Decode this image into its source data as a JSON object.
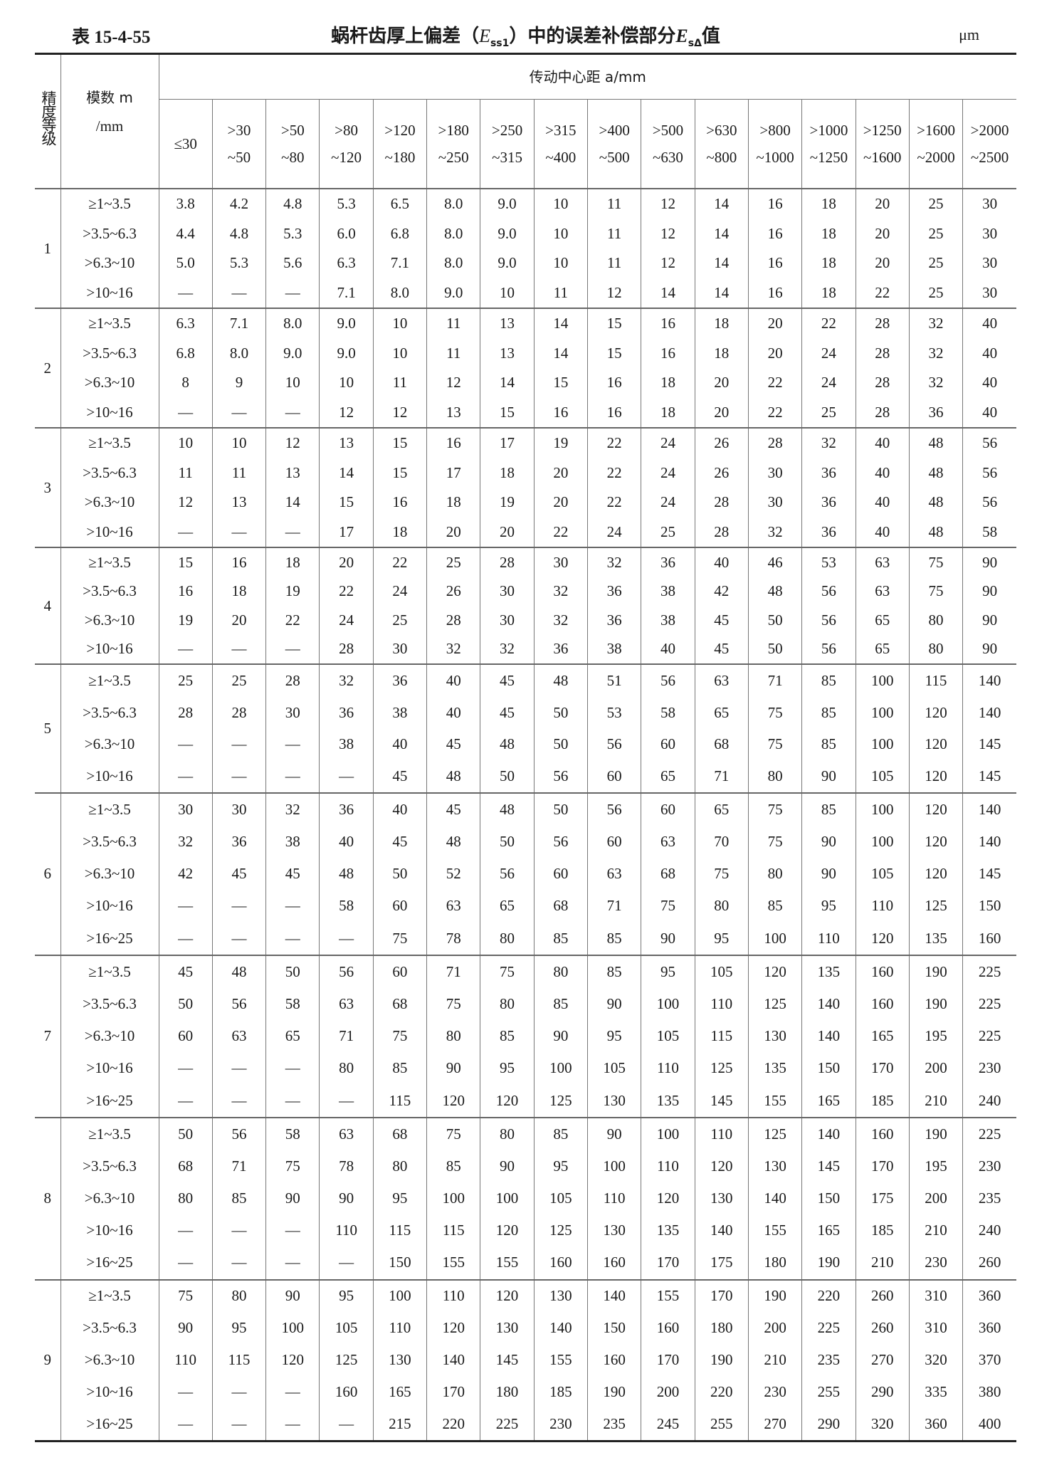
{
  "title": {
    "number": "表 15-4-55",
    "text_before": "蜗杆齿厚上偏差（",
    "e_symbol": "E",
    "e_sub": "ss1",
    "text_middle": "）中的误差补偿部分",
    "e2_symbol": "E",
    "e2_sub": "sΔ",
    "text_after": "值",
    "unit": "μm"
  },
  "header": {
    "grade": "精度等级",
    "module_line1": "模数 m",
    "module_line2": "/mm",
    "center_distance": "传动中心距 a/mm",
    "columns": [
      [
        "≤30",
        ""
      ],
      [
        ">30",
        "~50"
      ],
      [
        ">50",
        "~80"
      ],
      [
        ">80",
        "~120"
      ],
      [
        ">120",
        "~180"
      ],
      [
        ">180",
        "~250"
      ],
      [
        ">250",
        "~315"
      ],
      [
        ">315",
        "~400"
      ],
      [
        ">400",
        "~500"
      ],
      [
        ">500",
        "~630"
      ],
      [
        ">630",
        "~800"
      ],
      [
        ">800",
        "~1000"
      ],
      [
        ">1000",
        "~1250"
      ],
      [
        ">1250",
        "~1600"
      ],
      [
        ">1600",
        "~2000"
      ],
      [
        ">2000",
        "~2500"
      ]
    ]
  },
  "groups": [
    {
      "grade": "1",
      "rows": [
        {
          "m": "≥1~3.5",
          "v": [
            "3.8",
            "4.2",
            "4.8",
            "5.3",
            "6.5",
            "8.0",
            "9.0",
            "10",
            "11",
            "12",
            "14",
            "16",
            "18",
            "20",
            "25",
            "30"
          ]
        },
        {
          "m": ">3.5~6.3",
          "v": [
            "4.4",
            "4.8",
            "5.3",
            "6.0",
            "6.8",
            "8.0",
            "9.0",
            "10",
            "11",
            "12",
            "14",
            "16",
            "18",
            "20",
            "25",
            "30"
          ]
        },
        {
          "m": ">6.3~10",
          "v": [
            "5.0",
            "5.3",
            "5.6",
            "6.3",
            "7.1",
            "8.0",
            "9.0",
            "10",
            "11",
            "12",
            "14",
            "16",
            "18",
            "20",
            "25",
            "30"
          ]
        },
        {
          "m": ">10~16",
          "v": [
            "—",
            "—",
            "—",
            "7.1",
            "8.0",
            "9.0",
            "10",
            "11",
            "12",
            "14",
            "14",
            "16",
            "18",
            "22",
            "25",
            "30"
          ]
        }
      ]
    },
    {
      "grade": "2",
      "rows": [
        {
          "m": "≥1~3.5",
          "v": [
            "6.3",
            "7.1",
            "8.0",
            "9.0",
            "10",
            "11",
            "13",
            "14",
            "15",
            "16",
            "18",
            "20",
            "22",
            "28",
            "32",
            "40"
          ]
        },
        {
          "m": ">3.5~6.3",
          "v": [
            "6.8",
            "8.0",
            "9.0",
            "9.0",
            "10",
            "11",
            "13",
            "14",
            "15",
            "16",
            "18",
            "20",
            "24",
            "28",
            "32",
            "40"
          ]
        },
        {
          "m": ">6.3~10",
          "v": [
            "8",
            "9",
            "10",
            "10",
            "11",
            "12",
            "14",
            "15",
            "16",
            "18",
            "20",
            "22",
            "24",
            "28",
            "32",
            "40"
          ]
        },
        {
          "m": ">10~16",
          "v": [
            "—",
            "—",
            "—",
            "12",
            "12",
            "13",
            "15",
            "16",
            "16",
            "18",
            "20",
            "22",
            "25",
            "28",
            "36",
            "40"
          ]
        }
      ]
    },
    {
      "grade": "3",
      "rows": [
        {
          "m": "≥1~3.5",
          "v": [
            "10",
            "10",
            "12",
            "13",
            "15",
            "16",
            "17",
            "19",
            "22",
            "24",
            "26",
            "28",
            "32",
            "40",
            "48",
            "56"
          ]
        },
        {
          "m": ">3.5~6.3",
          "v": [
            "11",
            "11",
            "13",
            "14",
            "15",
            "17",
            "18",
            "20",
            "22",
            "24",
            "26",
            "30",
            "36",
            "40",
            "48",
            "56"
          ]
        },
        {
          "m": ">6.3~10",
          "v": [
            "12",
            "13",
            "14",
            "15",
            "16",
            "18",
            "19",
            "20",
            "22",
            "24",
            "28",
            "30",
            "36",
            "40",
            "48",
            "56"
          ]
        },
        {
          "m": ">10~16",
          "v": [
            "—",
            "—",
            "—",
            "17",
            "18",
            "20",
            "20",
            "22",
            "24",
            "25",
            "28",
            "32",
            "36",
            "40",
            "48",
            "58"
          ]
        }
      ]
    },
    {
      "grade": "4",
      "rows": [
        {
          "m": "≥1~3.5",
          "v": [
            "15",
            "16",
            "18",
            "20",
            "22",
            "25",
            "28",
            "30",
            "32",
            "36",
            "40",
            "46",
            "53",
            "63",
            "75",
            "90"
          ]
        },
        {
          "m": ">3.5~6.3",
          "v": [
            "16",
            "18",
            "19",
            "22",
            "24",
            "26",
            "30",
            "32",
            "36",
            "38",
            "42",
            "48",
            "56",
            "63",
            "75",
            "90"
          ]
        },
        {
          "m": ">6.3~10",
          "v": [
            "19",
            "20",
            "22",
            "24",
            "25",
            "28",
            "30",
            "32",
            "36",
            "38",
            "45",
            "50",
            "56",
            "65",
            "80",
            "90"
          ]
        },
        {
          "m": ">10~16",
          "v": [
            "—",
            "—",
            "—",
            "28",
            "30",
            "32",
            "32",
            "36",
            "38",
            "40",
            "45",
            "50",
            "56",
            "65",
            "80",
            "90"
          ]
        }
      ]
    },
    {
      "grade": "5",
      "rows": [
        {
          "m": "≥1~3.5",
          "v": [
            "25",
            "25",
            "28",
            "32",
            "36",
            "40",
            "45",
            "48",
            "51",
            "56",
            "63",
            "71",
            "85",
            "100",
            "115",
            "140"
          ]
        },
        {
          "m": ">3.5~6.3",
          "v": [
            "28",
            "28",
            "30",
            "36",
            "38",
            "40",
            "45",
            "50",
            "53",
            "58",
            "65",
            "75",
            "85",
            "100",
            "120",
            "140"
          ]
        },
        {
          "m": ">6.3~10",
          "v": [
            "—",
            "—",
            "—",
            "38",
            "40",
            "45",
            "48",
            "50",
            "56",
            "60",
            "68",
            "75",
            "85",
            "100",
            "120",
            "145"
          ]
        },
        {
          "m": ">10~16",
          "v": [
            "—",
            "—",
            "—",
            "—",
            "45",
            "48",
            "50",
            "56",
            "60",
            "65",
            "71",
            "80",
            "90",
            "105",
            "120",
            "145"
          ]
        }
      ]
    },
    {
      "grade": "6",
      "rows": [
        {
          "m": "≥1~3.5",
          "v": [
            "30",
            "30",
            "32",
            "36",
            "40",
            "45",
            "48",
            "50",
            "56",
            "60",
            "65",
            "75",
            "85",
            "100",
            "120",
            "140"
          ]
        },
        {
          "m": ">3.5~6.3",
          "v": [
            "32",
            "36",
            "38",
            "40",
            "45",
            "48",
            "50",
            "56",
            "60",
            "63",
            "70",
            "75",
            "90",
            "100",
            "120",
            "140"
          ]
        },
        {
          "m": ">6.3~10",
          "v": [
            "42",
            "45",
            "45",
            "48",
            "50",
            "52",
            "56",
            "60",
            "63",
            "68",
            "75",
            "80",
            "90",
            "105",
            "120",
            "145"
          ]
        },
        {
          "m": ">10~16",
          "v": [
            "—",
            "—",
            "—",
            "58",
            "60",
            "63",
            "65",
            "68",
            "71",
            "75",
            "80",
            "85",
            "95",
            "110",
            "125",
            "150"
          ]
        },
        {
          "m": ">16~25",
          "v": [
            "—",
            "—",
            "—",
            "—",
            "75",
            "78",
            "80",
            "85",
            "85",
            "90",
            "95",
            "100",
            "110",
            "120",
            "135",
            "160"
          ]
        }
      ]
    },
    {
      "grade": "7",
      "rows": [
        {
          "m": "≥1~3.5",
          "v": [
            "45",
            "48",
            "50",
            "56",
            "60",
            "71",
            "75",
            "80",
            "85",
            "95",
            "105",
            "120",
            "135",
            "160",
            "190",
            "225"
          ]
        },
        {
          "m": ">3.5~6.3",
          "v": [
            "50",
            "56",
            "58",
            "63",
            "68",
            "75",
            "80",
            "85",
            "90",
            "100",
            "110",
            "125",
            "140",
            "160",
            "190",
            "225"
          ]
        },
        {
          "m": ">6.3~10",
          "v": [
            "60",
            "63",
            "65",
            "71",
            "75",
            "80",
            "85",
            "90",
            "95",
            "105",
            "115",
            "130",
            "140",
            "165",
            "195",
            "225"
          ]
        },
        {
          "m": ">10~16",
          "v": [
            "—",
            "—",
            "—",
            "80",
            "85",
            "90",
            "95",
            "100",
            "105",
            "110",
            "125",
            "135",
            "150",
            "170",
            "200",
            "230"
          ]
        },
        {
          "m": ">16~25",
          "v": [
            "—",
            "—",
            "—",
            "—",
            "115",
            "120",
            "120",
            "125",
            "130",
            "135",
            "145",
            "155",
            "165",
            "185",
            "210",
            "240"
          ]
        }
      ]
    },
    {
      "grade": "8",
      "rows": [
        {
          "m": "≥1~3.5",
          "v": [
            "50",
            "56",
            "58",
            "63",
            "68",
            "75",
            "80",
            "85",
            "90",
            "100",
            "110",
            "125",
            "140",
            "160",
            "190",
            "225"
          ]
        },
        {
          "m": ">3.5~6.3",
          "v": [
            "68",
            "71",
            "75",
            "78",
            "80",
            "85",
            "90",
            "95",
            "100",
            "110",
            "120",
            "130",
            "145",
            "170",
            "195",
            "230"
          ]
        },
        {
          "m": ">6.3~10",
          "v": [
            "80",
            "85",
            "90",
            "90",
            "95",
            "100",
            "100",
            "105",
            "110",
            "120",
            "130",
            "140",
            "150",
            "175",
            "200",
            "235"
          ]
        },
        {
          "m": ">10~16",
          "v": [
            "—",
            "—",
            "—",
            "110",
            "115",
            "115",
            "120",
            "125",
            "130",
            "135",
            "140",
            "155",
            "165",
            "185",
            "210",
            "240"
          ]
        },
        {
          "m": ">16~25",
          "v": [
            "—",
            "—",
            "—",
            "—",
            "150",
            "155",
            "155",
            "160",
            "160",
            "170",
            "175",
            "180",
            "190",
            "210",
            "230",
            "260"
          ]
        }
      ]
    },
    {
      "grade": "9",
      "rows": [
        {
          "m": "≥1~3.5",
          "v": [
            "75",
            "80",
            "90",
            "95",
            "100",
            "110",
            "120",
            "130",
            "140",
            "155",
            "170",
            "190",
            "220",
            "260",
            "310",
            "360"
          ]
        },
        {
          "m": ">3.5~6.3",
          "v": [
            "90",
            "95",
            "100",
            "105",
            "110",
            "120",
            "130",
            "140",
            "150",
            "160",
            "180",
            "200",
            "225",
            "260",
            "310",
            "360"
          ]
        },
        {
          "m": ">6.3~10",
          "v": [
            "110",
            "115",
            "120",
            "125",
            "130",
            "140",
            "145",
            "155",
            "160",
            "170",
            "190",
            "210",
            "235",
            "270",
            "320",
            "370"
          ]
        },
        {
          "m": ">10~16",
          "v": [
            "—",
            "—",
            "—",
            "160",
            "165",
            "170",
            "180",
            "185",
            "190",
            "200",
            "220",
            "230",
            "255",
            "290",
            "335",
            "380"
          ]
        },
        {
          "m": ">16~25",
          "v": [
            "—",
            "—",
            "—",
            "—",
            "215",
            "220",
            "225",
            "230",
            "235",
            "245",
            "255",
            "270",
            "290",
            "320",
            "360",
            "400"
          ]
        }
      ]
    }
  ]
}
